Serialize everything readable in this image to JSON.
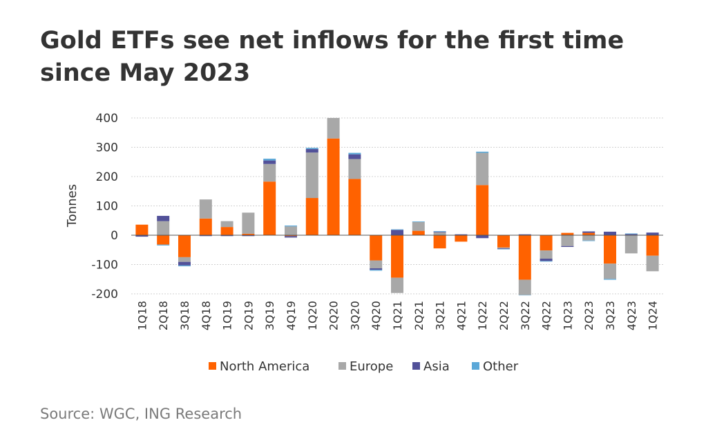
{
  "title": "Gold ETFs see net inflows for the first time since May 2023",
  "source": "Source: WGC, ING Research",
  "colors": {
    "North America": "#ff6200",
    "Europe": "#a8a8a8",
    "Asia": "#525199",
    "Other": "#5ba8d8",
    "grid": "#d0d0d0",
    "zero_line": "#555555"
  },
  "chart_data": {
    "type": "bar",
    "stacked": true,
    "title": "Gold ETFs see net inflows for the first time since May 2023",
    "xlabel": "",
    "ylabel": "Tonnes",
    "ylim": [
      -200,
      400
    ],
    "yticks": [
      -200,
      -100,
      0,
      100,
      200,
      300,
      400
    ],
    "grid": true,
    "legend_position": "bottom",
    "categories": [
      "1Q18",
      "2Q18",
      "3Q18",
      "4Q18",
      "1Q19",
      "2Q19",
      "3Q19",
      "4Q19",
      "1Q20",
      "2Q20",
      "3Q20",
      "4Q20",
      "1Q21",
      "2Q21",
      "3Q21",
      "4Q21",
      "1Q22",
      "2Q22",
      "3Q22",
      "4Q22",
      "1Q23",
      "2Q23",
      "3Q23",
      "4Q23",
      "1Q24"
    ],
    "series": [
      {
        "name": "North America",
        "values": [
          36,
          -32,
          -75,
          57,
          28,
          5,
          183,
          -3,
          127,
          330,
          192,
          -86,
          -145,
          15,
          -45,
          -22,
          171,
          -42,
          -152,
          -52,
          8,
          8,
          -97,
          0,
          -70
        ]
      },
      {
        "name": "Europe",
        "values": [
          0,
          48,
          -16,
          65,
          20,
          72,
          60,
          30,
          155,
          70,
          68,
          -27,
          -52,
          30,
          10,
          0,
          110,
          -3,
          -52,
          -28,
          -37,
          -18,
          -52,
          -62,
          -53
        ]
      },
      {
        "name": "Asia",
        "values": [
          -5,
          18,
          -12,
          -3,
          -3,
          -3,
          12,
          -5,
          12,
          0,
          16,
          -5,
          18,
          0,
          2,
          3,
          -10,
          -2,
          3,
          -8,
          -3,
          5,
          12,
          4,
          9
        ]
      },
      {
        "name": "Other",
        "values": [
          0,
          -3,
          -3,
          0,
          0,
          0,
          6,
          3,
          4,
          0,
          5,
          -3,
          2,
          2,
          2,
          0,
          4,
          -1,
          -1,
          -2,
          0,
          -2,
          -3,
          2,
          0
        ]
      }
    ]
  }
}
